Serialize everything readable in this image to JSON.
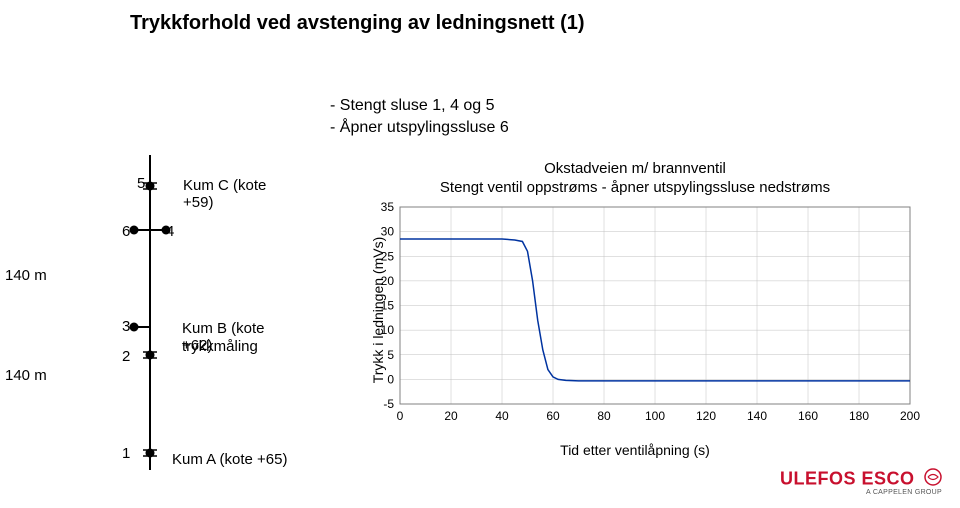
{
  "title": "Trykkforhold ved avstenging av ledningsnett (1)",
  "subtitle": {
    "line1": "- Stengt sluse 1, 4 og 5",
    "line2": "- Åpner utspylingssluse 6"
  },
  "schematic": {
    "dist1": "140 m",
    "dist2": "140 m",
    "nodes": {
      "n1": "1",
      "n2": "2",
      "n3": "3",
      "n4": "4",
      "n5": "5",
      "n6": "6"
    },
    "kumC": "Kum C (kote +59)",
    "kumB_line1": "Kum B (kote +62)",
    "kumB_line2": "trykkmåling",
    "kumA": "Kum A (kote +65)"
  },
  "chart": {
    "type": "line",
    "title_line1": "Okstadveien m/ brannventil",
    "title_line2": "Stengt ventil oppstrøms - åpner utspylingssluse nedstrøms",
    "ylabel": "Trykk i ledningen (mVs)",
    "xlabel": "Tid etter ventilåpning (s)",
    "xlim": [
      0,
      200
    ],
    "ylim": [
      -5,
      35
    ],
    "xtick_step": 20,
    "ytick_step": 5,
    "xticks": [
      0,
      20,
      40,
      60,
      80,
      100,
      120,
      140,
      160,
      180,
      200
    ],
    "yticks": [
      -5,
      0,
      5,
      10,
      15,
      20,
      25,
      30,
      35
    ],
    "plot_area_border_color": "#808080",
    "grid_color": "#c0c0c0",
    "line_color": "#0033a0",
    "line_width": 1.5,
    "background_color": "#ffffff",
    "points": [
      [
        0,
        28.5
      ],
      [
        5,
        28.5
      ],
      [
        10,
        28.5
      ],
      [
        15,
        28.5
      ],
      [
        20,
        28.5
      ],
      [
        25,
        28.5
      ],
      [
        30,
        28.5
      ],
      [
        35,
        28.5
      ],
      [
        40,
        28.5
      ],
      [
        45,
        28.3
      ],
      [
        48,
        28
      ],
      [
        50,
        26
      ],
      [
        52,
        20
      ],
      [
        54,
        12
      ],
      [
        56,
        6
      ],
      [
        58,
        2
      ],
      [
        60,
        0.5
      ],
      [
        62,
        0
      ],
      [
        65,
        -0.2
      ],
      [
        70,
        -0.3
      ],
      [
        80,
        -0.3
      ],
      [
        90,
        -0.3
      ],
      [
        100,
        -0.3
      ],
      [
        110,
        -0.3
      ],
      [
        120,
        -0.3
      ],
      [
        130,
        -0.3
      ],
      [
        140,
        -0.3
      ],
      [
        150,
        -0.3
      ],
      [
        160,
        -0.3
      ],
      [
        170,
        -0.3
      ],
      [
        180,
        -0.3
      ],
      [
        190,
        -0.3
      ],
      [
        200,
        -0.3
      ]
    ],
    "title_fontsize": 15,
    "label_fontsize": 14,
    "tick_fontsize": 12
  },
  "logo": {
    "main": "ULEFOS ESCO",
    "sub": "A CAPPELEN GROUP"
  }
}
